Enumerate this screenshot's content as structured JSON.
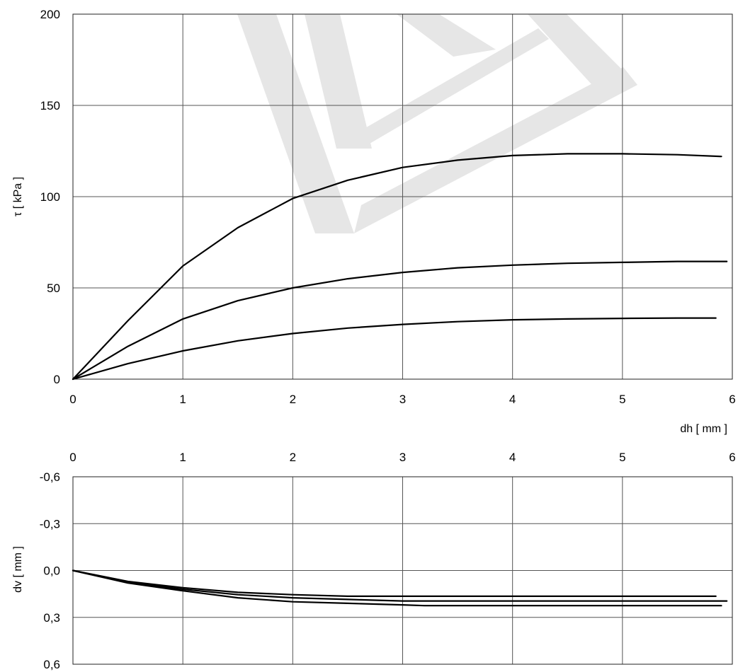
{
  "chart_data": [
    {
      "type": "line",
      "xlabel": "dh [ mm ]",
      "ylabel": "τ [ kPa ]",
      "xlim": [
        0,
        6
      ],
      "ylim": [
        0,
        200
      ],
      "xticks": [
        "0",
        "1",
        "2",
        "3",
        "4",
        "5",
        "6"
      ],
      "yticks": [
        "0",
        "50",
        "100",
        "150",
        "200"
      ],
      "grid": true,
      "series": [
        {
          "x": [
            0,
            0.5,
            1,
            1.5,
            2,
            2.5,
            3,
            3.5,
            4,
            4.5,
            5,
            5.5,
            5.9
          ],
          "y": [
            0,
            32,
            62,
            83,
            99,
            109,
            116,
            120,
            122.5,
            123.5,
            123.5,
            123,
            122
          ]
        },
        {
          "x": [
            0,
            0.5,
            1,
            1.5,
            2,
            2.5,
            3,
            3.5,
            4,
            4.5,
            5,
            5.5,
            5.95
          ],
          "y": [
            0,
            18,
            33,
            43,
            50,
            55,
            58.5,
            61,
            62.5,
            63.5,
            64,
            64.5,
            64.5
          ]
        },
        {
          "x": [
            0,
            0.5,
            1,
            1.5,
            2,
            2.5,
            3,
            3.5,
            4,
            4.5,
            5,
            5.5,
            5.85
          ],
          "y": [
            0,
            8.5,
            15.5,
            21,
            25,
            28,
            30,
            31.5,
            32.5,
            33,
            33.3,
            33.5,
            33.5
          ]
        }
      ]
    },
    {
      "type": "line",
      "xlabel": "",
      "ylabel": "dv [ mm ]",
      "xlim": [
        0,
        6
      ],
      "ylim": [
        -0.6,
        0.6
      ],
      "y_inverted": true,
      "xticks": [
        "0",
        "1",
        "2",
        "3",
        "4",
        "5",
        "6"
      ],
      "yticks": [
        "-0,6",
        "-0,3",
        "0,0",
        "0,3",
        "0,6"
      ],
      "grid": true,
      "series": [
        {
          "x": [
            0,
            0.5,
            1,
            1.5,
            2,
            2.5,
            3,
            3.5,
            4,
            5,
            5.85
          ],
          "y": [
            0,
            0.07,
            0.11,
            0.14,
            0.155,
            0.165,
            0.165,
            0.165,
            0.165,
            0.165,
            0.165
          ]
        },
        {
          "x": [
            0,
            0.5,
            1,
            1.5,
            2,
            2.5,
            3,
            3.5,
            4,
            5,
            5.95
          ],
          "y": [
            0,
            0.075,
            0.12,
            0.155,
            0.175,
            0.185,
            0.195,
            0.195,
            0.195,
            0.195,
            0.195
          ]
        },
        {
          "x": [
            0,
            0.5,
            1,
            1.5,
            2,
            2.5,
            3,
            3.2,
            4,
            5,
            5.9
          ],
          "y": [
            0,
            0.08,
            0.13,
            0.175,
            0.2,
            0.21,
            0.22,
            0.225,
            0.225,
            0.225,
            0.225
          ]
        }
      ]
    }
  ]
}
